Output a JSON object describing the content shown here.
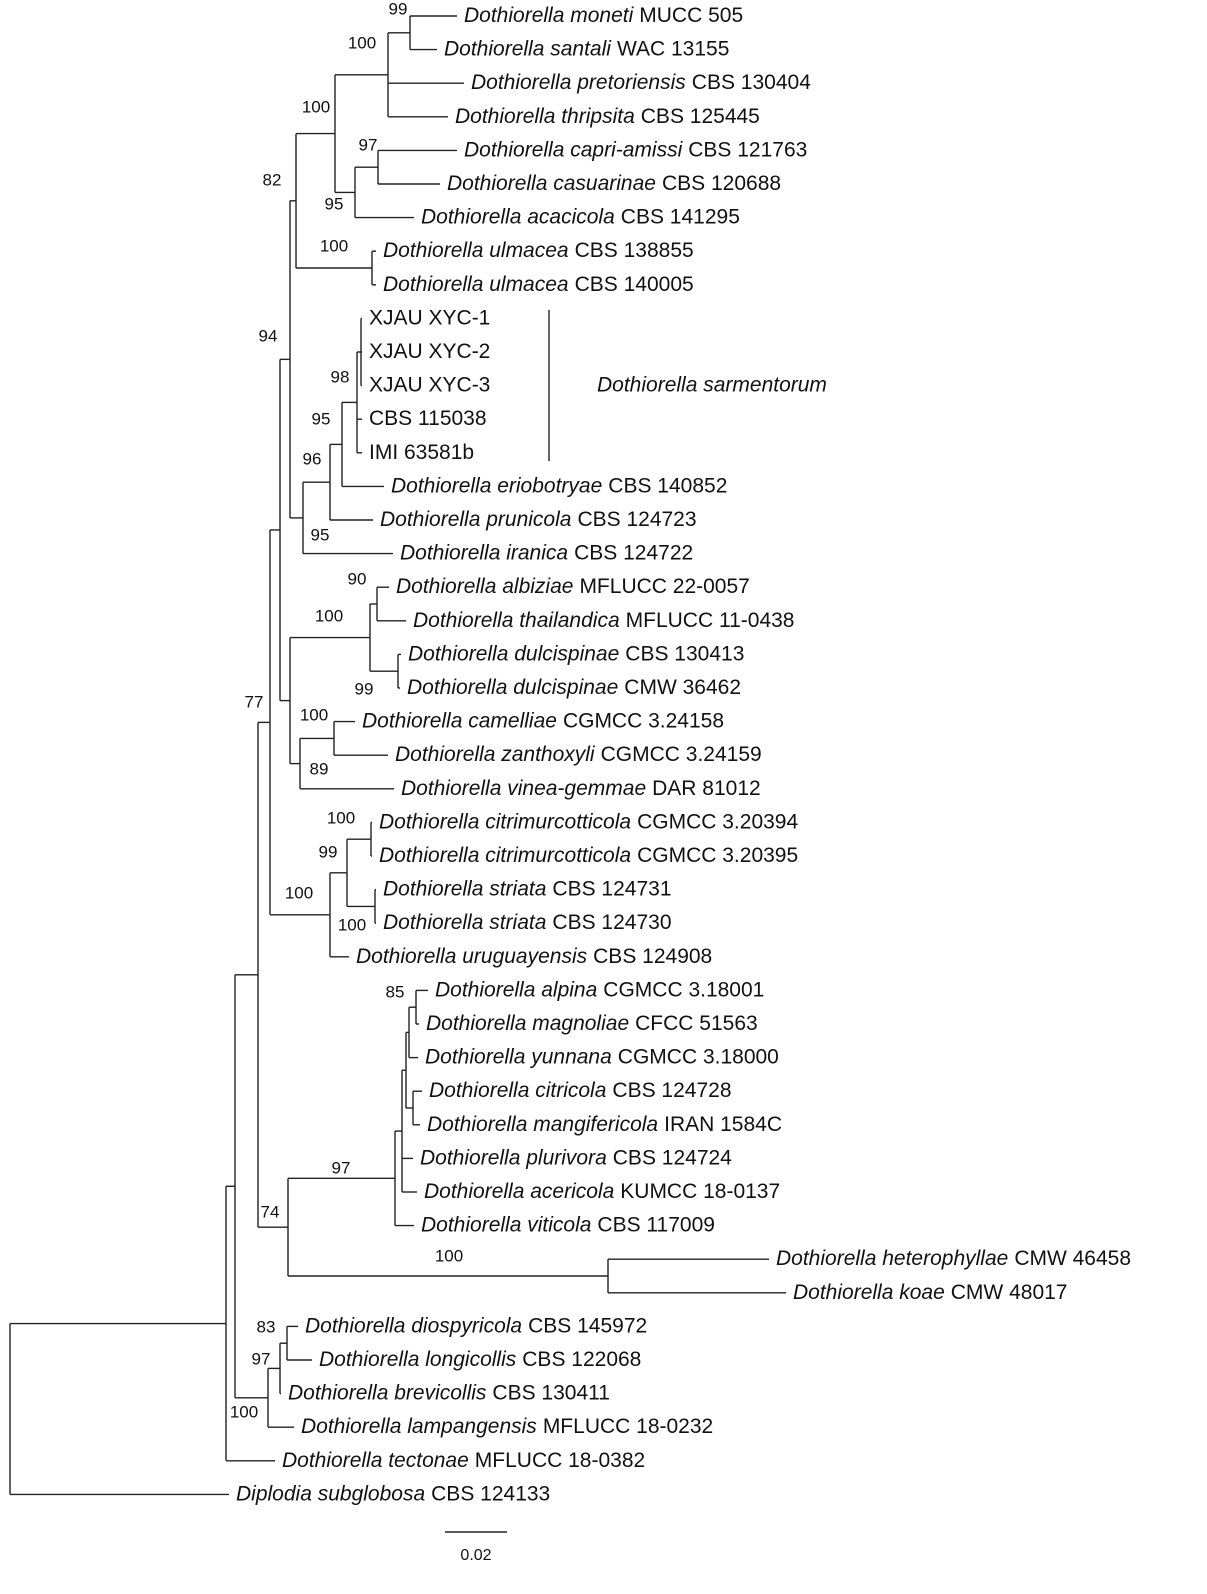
{
  "leaves": [
    {
      "species": "Dothiorella moneti",
      "strain": "MUCC 505"
    },
    {
      "species": "Dothiorella santali",
      "strain": "WAC 13155"
    },
    {
      "species": "Dothiorella pretoriensis",
      "strain": "CBS 130404"
    },
    {
      "species": "Dothiorella thripsita",
      "strain": "CBS 125445"
    },
    {
      "species": "Dothiorella capri-amissi",
      "strain": "CBS 121763"
    },
    {
      "species": "Dothiorella casuarinae",
      "strain": "CBS 120688"
    },
    {
      "species": "Dothiorella acacicola",
      "strain": "CBS 141295"
    },
    {
      "species": "Dothiorella ulmacea",
      "strain": "CBS 138855"
    },
    {
      "species": "Dothiorella ulmacea",
      "strain": "CBS 140005"
    },
    {
      "strain": "XJAU XYC-1"
    },
    {
      "strain": "XJAU XYC-2"
    },
    {
      "strain": "XJAU XYC-3"
    },
    {
      "strain": "CBS 115038"
    },
    {
      "strain": "IMI 63581b"
    },
    {
      "species": "Dothiorella eriobotryae",
      "strain": "CBS 140852"
    },
    {
      "species": "Dothiorella prunicola",
      "strain": "CBS 124723"
    },
    {
      "species": "Dothiorella iranica",
      "strain": "CBS 124722"
    },
    {
      "species": "Dothiorella albiziae",
      "strain": "MFLUCC 22-0057"
    },
    {
      "species": "Dothiorella thailandica",
      "strain": "MFLUCC 11-0438"
    },
    {
      "species": "Dothiorella dulcispinae",
      "strain": "CBS 130413"
    },
    {
      "species": "Dothiorella dulcispinae",
      "strain": "CMW 36462"
    },
    {
      "species": "Dothiorella camelliae",
      "strain": "CGMCC 3.24158"
    },
    {
      "species": "Dothiorella zanthoxyli",
      "strain": "CGMCC 3.24159"
    },
    {
      "species": "Dothiorella vinea-gemmae",
      "strain": "DAR 81012"
    },
    {
      "species": "Dothiorella citrimurcotticola",
      "strain": "CGMCC 3.20394"
    },
    {
      "species": "Dothiorella citrimurcotticola",
      "strain": "CGMCC 3.20395"
    },
    {
      "species": "Dothiorella striata",
      "strain": "CBS 124731"
    },
    {
      "species": "Dothiorella striata",
      "strain": "CBS 124730"
    },
    {
      "species": "Dothiorella uruguayensis",
      "strain": "CBS 124908"
    },
    {
      "species": "Dothiorella alpina",
      "strain": "CGMCC 3.18001"
    },
    {
      "species": "Dothiorella magnoliae",
      "strain": "CFCC 51563"
    },
    {
      "species": "Dothiorella yunnana",
      "strain": "CGMCC 3.18000"
    },
    {
      "species": "Dothiorella citricola",
      "strain": "CBS 124728"
    },
    {
      "species": "Dothiorella mangifericola",
      "strain": "IRAN 1584C"
    },
    {
      "species": "Dothiorella plurivora",
      "strain": "CBS 124724"
    },
    {
      "species": "Dothiorella acericola",
      "strain": "KUMCC 18-0137"
    },
    {
      "species": "Dothiorella viticola",
      "strain": "CBS 117009"
    },
    {
      "species": "Dothiorella heterophyllae",
      "strain": "CMW 46458"
    },
    {
      "species": "Dothiorella koae",
      "strain": "CMW 48017"
    },
    {
      "species": "Dothiorella diospyricola",
      "strain": "CBS 145972"
    },
    {
      "species": "Dothiorella longicollis",
      "strain": "CBS 122068"
    },
    {
      "species": "Dothiorella brevicollis",
      "strain": "CBS 130411"
    },
    {
      "species": "Dothiorella lampangensis",
      "strain": "MFLUCC 18-0232"
    },
    {
      "species": "Dothiorella tectonae",
      "strain": "MFLUCC 18-0382"
    },
    {
      "species": "Diplodia subglobosa",
      "strain": "CBS 124133"
    }
  ],
  "supports": [
    99,
    100,
    100,
    97,
    82,
    95,
    100,
    94,
    98,
    95,
    96,
    95,
    90,
    100,
    99,
    77,
    100,
    89,
    100,
    99,
    100,
    100,
    85,
    97,
    74,
    100,
    83,
    97,
    100
  ],
  "clade_label": "Dothiorella sarmentorum",
  "scale_bar": "0.02"
}
